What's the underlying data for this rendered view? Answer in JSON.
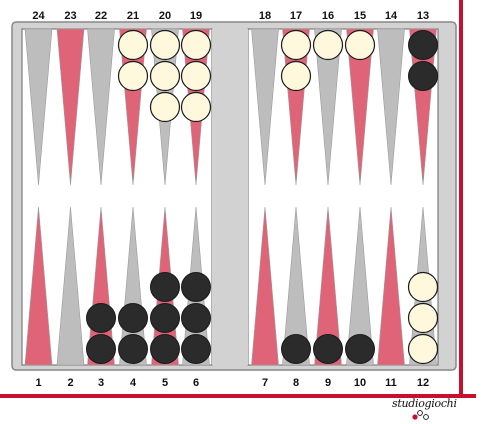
{
  "board": {
    "colors": {
      "frame": "#d2d2d2",
      "playing_area": "#ffffff",
      "point_red": "#e06478",
      "point_gray": "#bdbdbd",
      "white_checker": "#fff8dc",
      "black_checker": "#2b2b2b",
      "border_red": "#c8102e"
    },
    "top_labels": [
      "24",
      "23",
      "22",
      "21",
      "20",
      "19",
      "18",
      "17",
      "16",
      "15",
      "14",
      "13"
    ],
    "bottom_labels": [
      "1",
      "2",
      "3",
      "4",
      "5",
      "6",
      "7",
      "8",
      "9",
      "10",
      "11",
      "12"
    ],
    "top_point_colors": [
      "gray",
      "red",
      "gray",
      "red",
      "gray",
      "red",
      "gray",
      "red",
      "gray",
      "red",
      "gray",
      "red"
    ],
    "bottom_point_colors": [
      "red",
      "gray",
      "red",
      "gray",
      "red",
      "gray",
      "red",
      "gray",
      "red",
      "gray",
      "red",
      "gray"
    ],
    "position": [
      {
        "point": 21,
        "color": "white",
        "count": 2
      },
      {
        "point": 20,
        "color": "white",
        "count": 3
      },
      {
        "point": 19,
        "color": "white",
        "count": 3
      },
      {
        "point": 17,
        "color": "white",
        "count": 2
      },
      {
        "point": 16,
        "color": "white",
        "count": 1
      },
      {
        "point": 15,
        "color": "white",
        "count": 1
      },
      {
        "point": 13,
        "color": "black",
        "count": 2
      },
      {
        "point": 3,
        "color": "black",
        "count": 2
      },
      {
        "point": 4,
        "color": "black",
        "count": 2
      },
      {
        "point": 5,
        "color": "black",
        "count": 3
      },
      {
        "point": 6,
        "color": "black",
        "count": 3
      },
      {
        "point": 8,
        "color": "black",
        "count": 1
      },
      {
        "point": 9,
        "color": "black",
        "count": 1
      },
      {
        "point": 10,
        "color": "black",
        "count": 1
      },
      {
        "point": 12,
        "color": "white",
        "count": 3
      }
    ]
  },
  "logo": {
    "text": "studiogiochi"
  }
}
